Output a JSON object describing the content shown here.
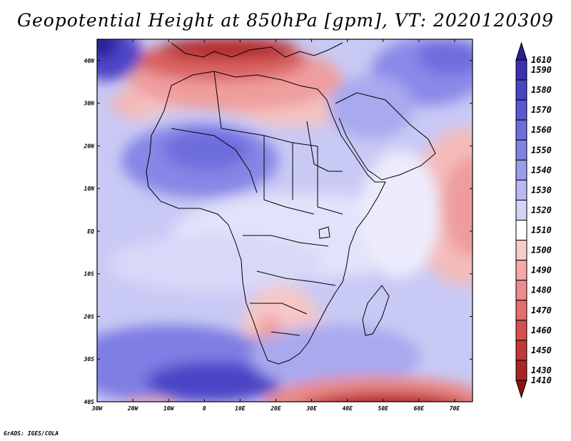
{
  "title": "Geopotential Height at 850hPa [gpm], VT: 2020120309",
  "credit": "GrADS: IGES/COLA",
  "map": {
    "lat_labels": [
      "40N",
      "30N",
      "20N",
      "10N",
      "EQ",
      "10S",
      "20S",
      "30S",
      "40S"
    ],
    "lon_labels": [
      "30W",
      "20W",
      "10W",
      "0",
      "10E",
      "20E",
      "30E",
      "40E",
      "50E",
      "60E",
      "70E"
    ],
    "lon_range": [
      -30,
      75
    ],
    "lat_range": [
      -40,
      45
    ]
  },
  "colorbar": {
    "labels": [
      "1610",
      "1590",
      "1580",
      "1570",
      "1560",
      "1550",
      "1540",
      "1530",
      "1520",
      "1510",
      "1500",
      "1490",
      "1480",
      "1470",
      "1460",
      "1450",
      "1430",
      "1410"
    ],
    "colors": [
      "#2a1e93",
      "#3a30b0",
      "#4b44c6",
      "#5c58d3",
      "#6e6dde",
      "#8282e6",
      "#9c9ced",
      "#b8b8f3",
      "#d4d4f8",
      "#ffffff",
      "#f7cccb",
      "#f2aaa9",
      "#ec8c8b",
      "#e56d6c",
      "#d84f4f",
      "#c53636",
      "#a92424",
      "#8a1414"
    ]
  }
}
